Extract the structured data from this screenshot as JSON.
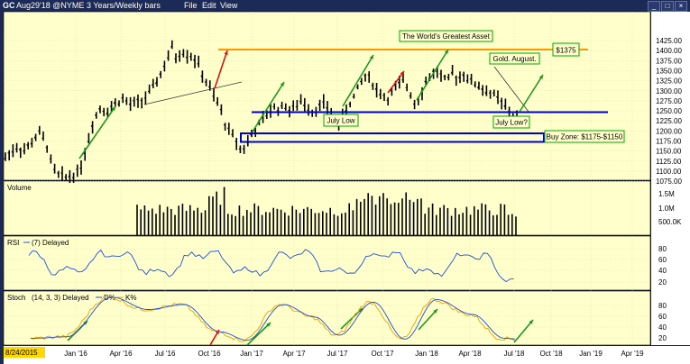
{
  "titlebar": {
    "symbol": "GC",
    "contract": "Aug29'18 @NYME",
    "period": "3 Years/Weekly bars",
    "menu": [
      "File",
      "Edit",
      "View"
    ]
  },
  "price_axis": [
    "1425.00",
    "1400.00",
    "1375.00",
    "1350.00",
    "1325.00",
    "1300.00",
    "1275.00",
    "1250.00",
    "1225.00",
    "1200.00",
    "1175.00",
    "1150.00",
    "1125.00",
    "1100.00",
    "1075.00"
  ],
  "volume_axis": [
    "1.5M",
    "1.0M",
    "500.0K"
  ],
  "rsi_axis": [
    "80",
    "60",
    "40",
    "20"
  ],
  "stoch_axis": [
    "80",
    "60",
    "40",
    "20"
  ],
  "date_axis": [
    "Jan '16",
    "Apr '16",
    "Jul '16",
    "Oct '16",
    "Jan '17",
    "Apr '17",
    "Jul '17",
    "Oct '17",
    "Jan '18",
    "Apr '18",
    "Jul '18",
    "Oct '18",
    "Jan '19",
    "Apr '19"
  ],
  "start_date": "8/24/2015",
  "panels": {
    "volume": {
      "label": "Volume"
    },
    "rsi": {
      "label": "RSI",
      "params": "(7) Delayed"
    },
    "stoch": {
      "label": "Stoch",
      "params": "(14, 3, 3) Delayed",
      "series": [
        "D%",
        "K%"
      ]
    }
  },
  "annotations": {
    "greatest_asset": "The World's Greatest Asset",
    "level": "$1375",
    "gold_august": "Gold. August.",
    "july_low": "July Low",
    "july_low_q": "July Low?",
    "buy_zone": "Buy Zone: $1175-$1150"
  },
  "colors": {
    "chart_bg": "#ffffcc",
    "frame": "#1b2a57",
    "bars": "#000000",
    "resistance": "#ff9900",
    "support": "#0000cc",
    "up_arrow": "#1a9a1a",
    "down_arrow": "#dd1111",
    "label_border": "#00aa00",
    "line": "#1f4fd6",
    "k_line": "#f0a000"
  }
}
